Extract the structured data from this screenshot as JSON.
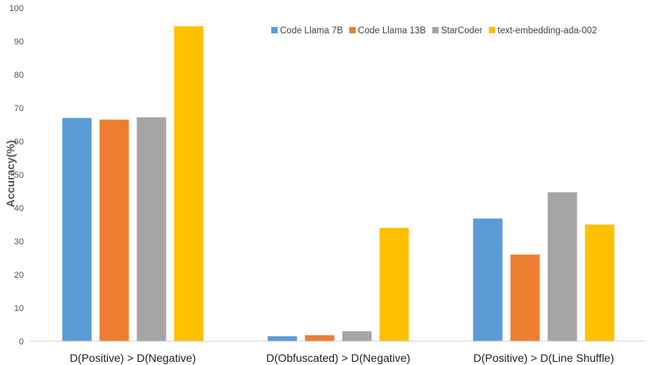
{
  "chart_data": {
    "type": "bar",
    "title": "",
    "xlabel": "",
    "ylabel": "Accuracy(%)",
    "ylim": [
      0,
      100
    ],
    "yticks": [
      0,
      10,
      20,
      30,
      40,
      50,
      60,
      70,
      80,
      90,
      100
    ],
    "grid": false,
    "legend_position": "top-right",
    "categories": [
      "D(Positive) > D(Negative)",
      "D(Obfuscated) > D(Negative)",
      "D(Positive) > D(Line Shuffle)"
    ],
    "series": [
      {
        "name": "Code Llama 7B",
        "color": "#5B9BD5",
        "values": [
          67.0,
          1.5,
          36.8
        ]
      },
      {
        "name": "Code Llama 13B",
        "color": "#ED7D31",
        "values": [
          66.5,
          1.8,
          26.0
        ]
      },
      {
        "name": "StarCoder",
        "color": "#A5A5A5",
        "values": [
          67.2,
          3.0,
          44.7
        ]
      },
      {
        "name": "text-embedding-ada-002",
        "color": "#FFC000",
        "values": [
          94.5,
          34.0,
          35.0
        ]
      }
    ]
  }
}
